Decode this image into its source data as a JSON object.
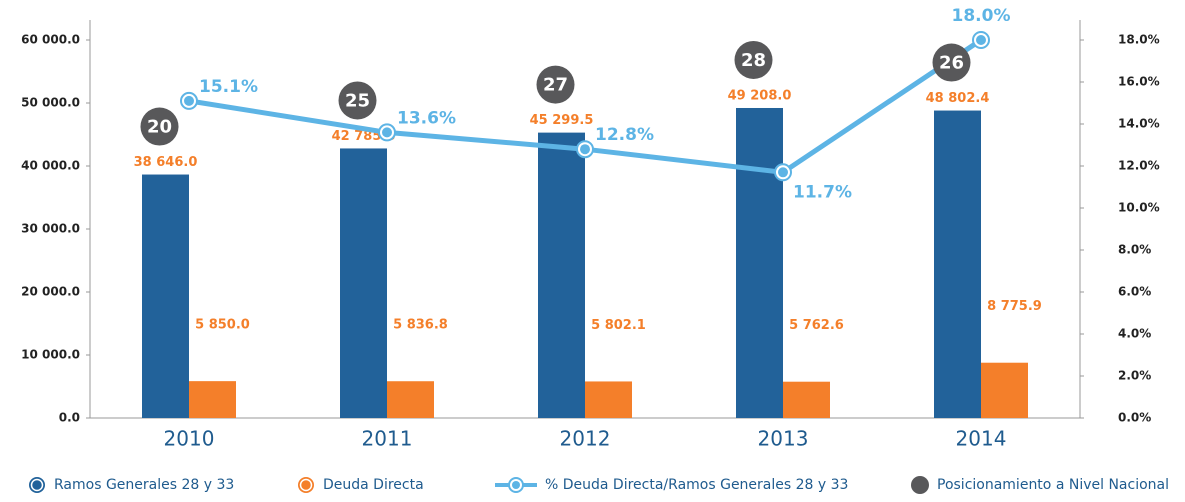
{
  "chart_data": {
    "type": "bar",
    "categories": [
      "2010",
      "2011",
      "2012",
      "2013",
      "2014"
    ],
    "ylim": [
      0,
      60000
    ],
    "yticks": [
      {
        "value": 0,
        "label": "0.0"
      },
      {
        "value": 10000,
        "label": "10 000.0"
      },
      {
        "value": 20000,
        "label": "20 000.0"
      },
      {
        "value": 30000,
        "label": "30 000.0"
      },
      {
        "value": 40000,
        "label": "40 000.0"
      },
      {
        "value": 50000,
        "label": "50 000.0"
      },
      {
        "value": 60000,
        "label": "60 000.0"
      }
    ],
    "y2lim": [
      0,
      18
    ],
    "y2ticks": [
      {
        "value": 0,
        "label": "0.0%"
      },
      {
        "value": 2,
        "label": "2.0%"
      },
      {
        "value": 4,
        "label": "4.0%"
      },
      {
        "value": 6,
        "label": "6.0%"
      },
      {
        "value": 8,
        "label": "8.0%"
      },
      {
        "value": 10,
        "label": "10.0%"
      },
      {
        "value": 12,
        "label": "12.0%"
      },
      {
        "value": 14,
        "label": "14.0%"
      },
      {
        "value": 16,
        "label": "16.0%"
      },
      {
        "value": 18,
        "label": "18.0%"
      }
    ],
    "legend": "bottom",
    "series": [
      {
        "name": "Ramos Generales 28 y 33",
        "type": "bar",
        "color": "#22629a",
        "values": [
          38646.0,
          42785.6,
          45299.5,
          49208.0,
          48802.4
        ],
        "value_labels": [
          "38 646.0",
          "42 785.6",
          "45 299.5",
          "49 208.0",
          "48 802.4"
        ]
      },
      {
        "name": "Deuda Directa",
        "type": "bar",
        "color": "#f47f2a",
        "values": [
          5850.0,
          5836.8,
          5802.1,
          5762.6,
          8775.9
        ],
        "value_labels": [
          "5 850.0",
          "5 836.8",
          "5 802.1",
          "5 762.6",
          "8 775.9"
        ]
      },
      {
        "name": "% Deuda Directa/Ramos Generales 28 y 33",
        "type": "line",
        "axis": "y2",
        "color": "#5db4e5",
        "values": [
          15.1,
          13.6,
          12.8,
          11.7,
          18.0
        ],
        "value_labels": [
          "15.1%",
          "13.6%",
          "12.8%",
          "11.7%",
          "18.0%"
        ]
      },
      {
        "name": "Posicionamiento a Nivel Nacional",
        "type": "rank",
        "color": "#58585a",
        "values": [
          20,
          25,
          27,
          28,
          26
        ]
      }
    ]
  }
}
